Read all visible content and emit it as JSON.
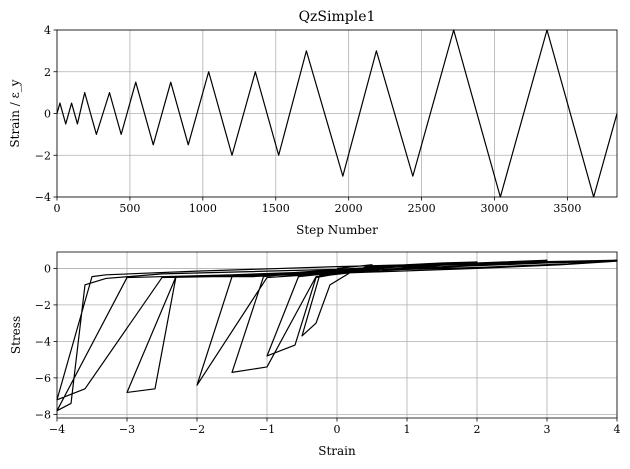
{
  "chart_data": [
    {
      "type": "line",
      "title": "QzSimple1",
      "xlabel": "Step Number",
      "ylabel": "Strain / ε_y",
      "xlim": [
        0,
        3840
      ],
      "ylim": [
        -4,
        4
      ],
      "xticks": [
        0,
        500,
        1000,
        1500,
        2000,
        2500,
        3000,
        3500
      ],
      "yticks": [
        -4,
        -2,
        0,
        2,
        4
      ],
      "grid": true,
      "series": [
        {
          "x": [
            0,
            20,
            60,
            100,
            140,
            190,
            270,
            360,
            440,
            540,
            660,
            780,
            900,
            1040,
            1200,
            1360,
            1520,
            1710,
            1960,
            2190,
            2440,
            2720,
            3040,
            3360,
            3680,
            3840
          ],
          "y": [
            0,
            0.5,
            -0.5,
            0.5,
            -0.5,
            1,
            -1,
            1,
            -1,
            1.5,
            -1.5,
            1.5,
            -1.5,
            2,
            -2,
            2,
            -2,
            3,
            -3,
            3,
            -3,
            4,
            -4,
            4,
            -4,
            0
          ]
        }
      ]
    },
    {
      "type": "line",
      "title": "",
      "xlabel": "Strain",
      "ylabel": "Stress",
      "xlim": [
        -4,
        4
      ],
      "ylim": [
        -8.2,
        0.9
      ],
      "xticks": [
        -4,
        -3,
        -2,
        -1,
        0,
        1,
        2,
        3,
        4
      ],
      "yticks": [
        -8,
        -6,
        -4,
        -2,
        0
      ],
      "grid": true,
      "series": [
        {
          "x": [
            0,
            0.5,
            0.2,
            -0.1,
            -0.3,
            -0.5,
            -0.25,
            0.2,
            0.5,
            1,
            1.5,
            0.9,
            0.3,
            -0.3,
            -0.6,
            -1,
            -0.55,
            0.3,
            1,
            1.5,
            2,
            1.3,
            0.5,
            -0.3,
            -1,
            -1.5,
            -1.05,
            0,
            1,
            2,
            3,
            2.2,
            1.2,
            0,
            -1,
            -2,
            -1.5,
            -0.3,
            1,
            2,
            3,
            2.3,
            1.3,
            0,
            -1.2,
            -2.3,
            -3,
            -2.6,
            -2.3,
            -1,
            1,
            3,
            4,
            3.2,
            2,
            0.5,
            -1,
            -2.5,
            -3.6,
            -4,
            -3.5,
            -3.3,
            -2,
            0,
            2,
            4,
            3.3,
            2,
            0,
            -1.5,
            -3,
            -4,
            -3.8,
            -3.6,
            -3.3,
            -2.5,
            -1,
            0,
            1,
            2,
            3,
            4
          ],
          "y": [
            0,
            0.2,
            -0.2,
            -0.9,
            -3,
            -3.7,
            -0.4,
            -0.1,
            0.1,
            0.2,
            0.3,
            0,
            -0.1,
            -0.5,
            -4.2,
            -4.8,
            -0.45,
            -0.1,
            0.15,
            0.3,
            0.35,
            0.1,
            -0.1,
            -0.45,
            -5.4,
            -5.7,
            -0.45,
            -0.05,
            0.15,
            0.3,
            0.4,
            0.2,
            0,
            -0.25,
            -0.5,
            -6.4,
            -0.45,
            -0.15,
            0.1,
            0.3,
            0.45,
            0.25,
            0.05,
            -0.2,
            -0.45,
            -0.45,
            -6.8,
            -6.6,
            -0.45,
            -0.35,
            0,
            0.3,
            0.4,
            0.2,
            0,
            -0.2,
            -0.4,
            -0.5,
            -6.6,
            -7.2,
            -0.45,
            -0.35,
            -0.15,
            0.1,
            0.3,
            0.45,
            0.25,
            0.05,
            -0.15,
            -0.35,
            -0.5,
            -7.8,
            -7.4,
            -0.9,
            -0.55,
            -0.3,
            -0.15,
            -0.05,
            0.1,
            0.25,
            0.35,
            0.45
          ]
        }
      ]
    }
  ]
}
